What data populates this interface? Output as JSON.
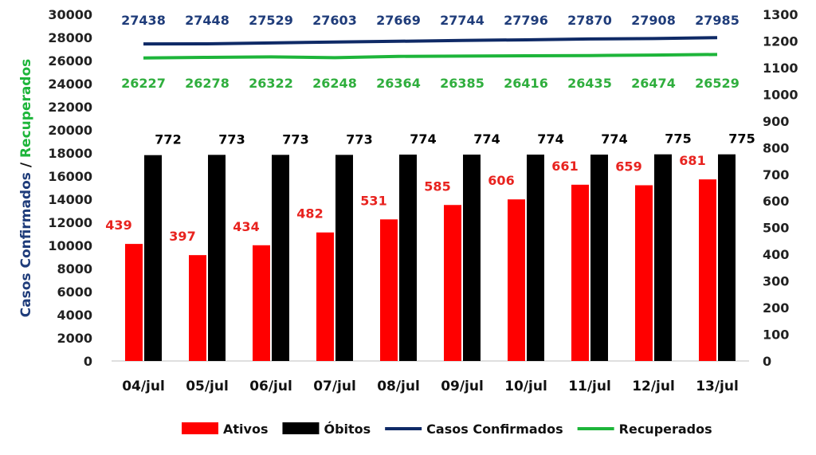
{
  "chart_data": {
    "type": "bar",
    "categories": [
      "04/jul",
      "05/jul",
      "06/jul",
      "07/jul",
      "08/jul",
      "09/jul",
      "10/jul",
      "11/jul",
      "12/jul",
      "13/jul"
    ],
    "series": [
      {
        "name": "Ativos",
        "type": "bar",
        "axis": "right",
        "color": "#ff0000",
        "label_color": "#e8231f",
        "values": [
          439,
          397,
          434,
          482,
          531,
          585,
          606,
          661,
          659,
          681
        ]
      },
      {
        "name": "Óbitos",
        "type": "bar",
        "axis": "right",
        "color": "#000000",
        "label_color": "#000000",
        "values": [
          772,
          773,
          773,
          773,
          774,
          774,
          774,
          774,
          775,
          775
        ]
      },
      {
        "name": "Casos Confirmados",
        "type": "line",
        "axis": "left",
        "color": "#0f2a66",
        "label_color": "#1f3c7a",
        "values": [
          27438,
          27448,
          27529,
          27603,
          27669,
          27744,
          27796,
          27870,
          27908,
          27985
        ]
      },
      {
        "name": "Recuperados",
        "type": "line",
        "axis": "left",
        "color": "#1db53a",
        "label_color": "#2fae3d",
        "values": [
          26227,
          26278,
          26322,
          26248,
          26364,
          26385,
          26416,
          26435,
          26474,
          26529
        ]
      }
    ],
    "y_left": {
      "min": 0,
      "max": 30000,
      "step": 2000,
      "label_part1": "Casos Confirmados",
      "label_sep": " / ",
      "label_part2": "Recuperados",
      "label_color1": "#1f3c7a",
      "label_color2": "#1db53a"
    },
    "y_right": {
      "min": 0,
      "max": 1300,
      "step": 100
    },
    "grid": false,
    "legend_position": "bottom"
  }
}
